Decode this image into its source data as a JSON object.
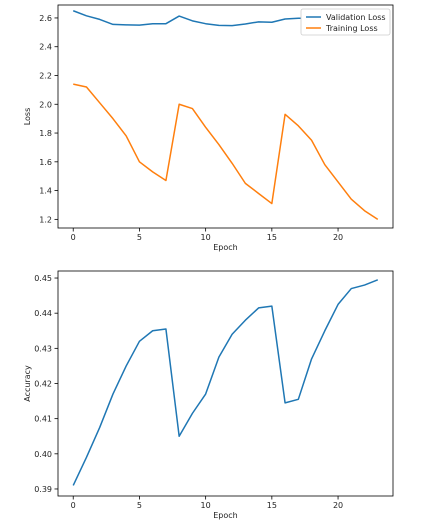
{
  "chart_data": [
    {
      "type": "line",
      "xlabel": "Epoch",
      "ylabel": "Loss",
      "xlim": [
        -1.15,
        24.15
      ],
      "ylim": [
        1.14,
        2.69
      ],
      "xticks": [
        0,
        5,
        10,
        15,
        20
      ],
      "yticks": [
        1.2,
        1.4,
        1.6,
        1.8,
        2.0,
        2.2,
        2.4,
        2.6
      ],
      "ytick_labels": [
        "1.2",
        "1.4",
        "1.6",
        "1.8",
        "2.0",
        "2.2",
        "2.4",
        "2.6"
      ],
      "grid": false,
      "legend_position": "top-right",
      "x": [
        0,
        1,
        2,
        3,
        4,
        5,
        6,
        7,
        8,
        9,
        10,
        11,
        12,
        13,
        14,
        15,
        16,
        17,
        18,
        19,
        20,
        21,
        22,
        23
      ],
      "series": [
        {
          "name": "Validation Loss",
          "color": "#1f77b4",
          "values": [
            2.65,
            2.615,
            2.59,
            2.555,
            2.552,
            2.55,
            2.56,
            2.56,
            2.613,
            2.58,
            2.56,
            2.548,
            2.547,
            2.558,
            2.573,
            2.57,
            2.593,
            2.598,
            2.598,
            2.598,
            2.598,
            2.598,
            2.598,
            2.598
          ]
        },
        {
          "name": "Training Loss",
          "color": "#ff7f0e",
          "values": [
            2.14,
            2.12,
            2.01,
            1.9,
            1.78,
            1.6,
            1.53,
            1.47,
            2.0,
            1.97,
            1.84,
            1.72,
            1.59,
            1.45,
            1.38,
            1.31,
            1.93,
            1.85,
            1.75,
            1.58,
            1.46,
            1.34,
            1.26,
            1.2
          ]
        }
      ]
    },
    {
      "type": "line",
      "xlabel": "Epoch",
      "ylabel": "Accuracy",
      "xlim": [
        -1.15,
        24.15
      ],
      "ylim": [
        0.388,
        0.452
      ],
      "xticks": [
        0,
        5,
        10,
        15,
        20
      ],
      "yticks": [
        0.39,
        0.4,
        0.41,
        0.42,
        0.43,
        0.44,
        0.45
      ],
      "ytick_labels": [
        "0.39",
        "0.40",
        "0.41",
        "0.42",
        "0.43",
        "0.44",
        "0.45"
      ],
      "grid": false,
      "x": [
        0,
        1,
        2,
        3,
        4,
        5,
        6,
        7,
        8,
        9,
        10,
        11,
        12,
        13,
        14,
        15,
        16,
        17,
        18,
        19,
        20,
        21,
        22,
        23
      ],
      "series": [
        {
          "color": "#1f77b4",
          "values": [
            0.391,
            0.399,
            0.4075,
            0.417,
            0.425,
            0.432,
            0.435,
            0.4355,
            0.405,
            0.4115,
            0.417,
            0.4275,
            0.434,
            0.438,
            0.4415,
            0.442,
            0.4145,
            0.4155,
            0.427,
            0.435,
            0.4425,
            0.447,
            0.448,
            0.4495
          ]
        }
      ]
    }
  ]
}
